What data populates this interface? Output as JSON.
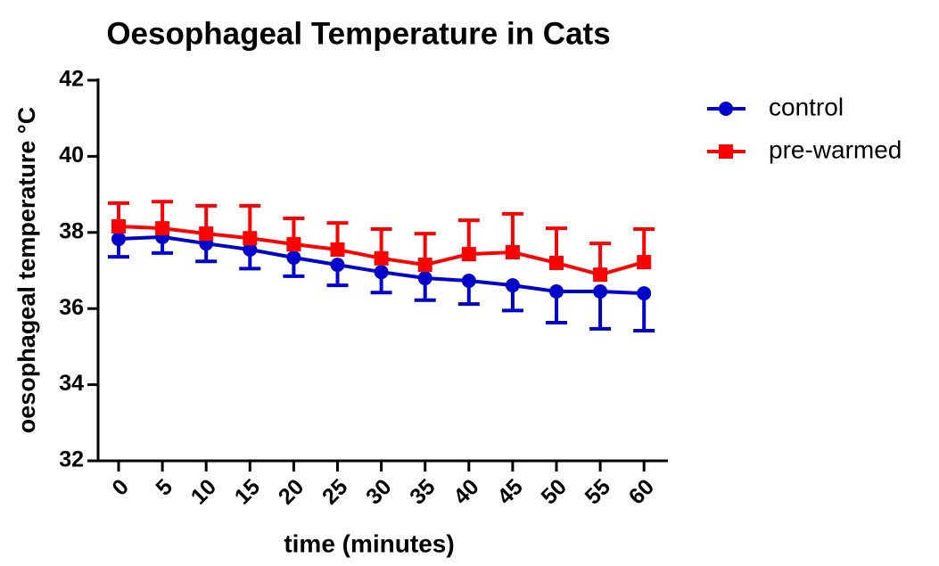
{
  "chart_data": {
    "type": "line",
    "title": "Oesophageal Temperature in Cats",
    "x_label": "time (minutes)",
    "y_label": "oesophageal temperature °C",
    "categories": [
      "0",
      "5",
      "10",
      "15",
      "20",
      "25",
      "30",
      "35",
      "40",
      "45",
      "50",
      "55",
      "60"
    ],
    "ylim": [
      32,
      42
    ],
    "yticks": [
      32,
      34,
      36,
      38,
      40,
      42
    ],
    "legend": "right",
    "series": [
      {
        "name": "control",
        "color": "#0000cc",
        "marker": "circle",
        "error_direction": "down",
        "values": [
          37.83,
          37.88,
          37.71,
          37.55,
          37.34,
          37.15,
          36.96,
          36.8,
          36.73,
          36.61,
          36.45,
          36.45,
          36.4
        ],
        "error": [
          0.47,
          0.42,
          0.47,
          0.5,
          0.49,
          0.54,
          0.54,
          0.58,
          0.61,
          0.66,
          0.82,
          0.98,
          0.98
        ]
      },
      {
        "name": "pre-warmed",
        "color": "#ff0000",
        "marker": "square",
        "error_direction": "up",
        "values": [
          38.16,
          38.11,
          37.97,
          37.85,
          37.69,
          37.55,
          37.32,
          37.15,
          37.43,
          37.48,
          37.2,
          36.89,
          37.22
        ],
        "error": [
          0.61,
          0.7,
          0.73,
          0.85,
          0.68,
          0.7,
          0.77,
          0.82,
          0.89,
          1.01,
          0.91,
          0.82,
          0.87
        ]
      }
    ]
  }
}
